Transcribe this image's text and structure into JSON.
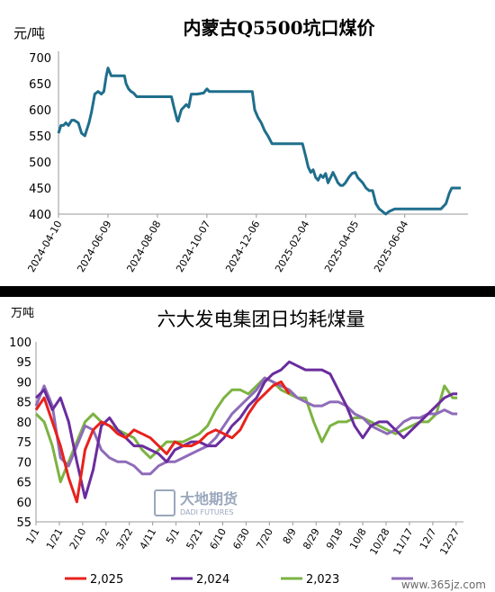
{
  "chart_data": [
    {
      "type": "line",
      "title": "内蒙古Q5500坑口煤价",
      "ylabel": "元/吨",
      "ylim": [
        400,
        700
      ],
      "yticks": [
        "400",
        "450",
        "500",
        "550",
        "600",
        "650",
        "700"
      ],
      "xticks": [
        "2024-04-10",
        "2024-06-09",
        "2024-08-08",
        "2024-10-07",
        "2024-12-06",
        "2025-02-04",
        "2025-04-05",
        "2025-06-04"
      ],
      "grid": false,
      "color": "#1F6E8C",
      "series": [
        {
          "x": [
            "2024-04-10",
            "2024-04-13",
            "2024-04-16",
            "2024-04-19",
            "2024-04-22",
            "2024-04-26",
            "2024-04-29",
            "2024-05-01",
            "2024-05-04",
            "2024-05-08",
            "2024-05-12",
            "2024-05-14",
            "2024-05-17",
            "2024-05-20",
            "2024-05-24",
            "2024-05-28",
            "2024-06-01",
            "2024-06-04",
            "2024-06-07",
            "2024-06-09",
            "2024-06-13",
            "2024-06-17",
            "2024-06-21",
            "2024-06-25",
            "2024-06-29",
            "2024-07-01",
            "2024-07-04",
            "2024-07-07",
            "2024-07-10",
            "2024-07-14",
            "2024-07-20",
            "2024-07-30",
            "2024-08-10",
            "2024-08-20",
            "2024-08-25",
            "2024-08-28",
            "2024-09-01",
            "2024-09-02",
            "2024-09-06",
            "2024-09-12",
            "2024-09-15",
            "2024-09-18",
            "2024-09-25",
            "2024-10-03",
            "2024-10-07",
            "2024-10-10",
            "2024-10-15",
            "2024-10-30",
            "2024-11-20",
            "2024-11-28",
            "2024-12-01",
            "2024-12-04",
            "2024-12-08",
            "2024-12-12",
            "2024-12-16",
            "2024-12-20",
            "2024-12-25",
            "2025-01-05",
            "2025-01-20",
            "2025-01-28",
            "2025-01-31",
            "2025-02-04",
            "2025-02-07",
            "2025-02-10",
            "2025-02-13",
            "2025-02-16",
            "2025-02-19",
            "2025-02-22",
            "2025-02-25",
            "2025-02-28",
            "2025-03-03",
            "2025-03-06",
            "2025-03-09",
            "2025-03-12",
            "2025-03-15",
            "2025-03-18",
            "2025-03-21",
            "2025-03-24",
            "2025-03-28",
            "2025-04-01",
            "2025-04-05",
            "2025-04-08",
            "2025-04-11",
            "2025-04-14",
            "2025-04-18",
            "2025-04-22",
            "2025-04-26",
            "2025-04-30",
            "2025-05-04",
            "2025-05-08",
            "2025-05-12",
            "2025-05-16",
            "2025-05-20",
            "2025-05-23",
            "2025-05-27",
            "2025-05-31",
            "2025-06-05",
            "2025-06-10",
            "2025-06-14",
            "2025-06-20",
            "2025-06-28",
            "2025-07-08",
            "2025-07-18",
            "2025-07-24",
            "2025-07-28",
            "2025-07-31",
            "2025-08-04",
            "2025-08-08",
            "2025-08-11"
          ],
          "y": [
            555,
            570,
            570,
            575,
            570,
            580,
            580,
            578,
            575,
            555,
            550,
            560,
            575,
            595,
            630,
            635,
            630,
            635,
            665,
            680,
            665,
            665,
            665,
            665,
            665,
            650,
            640,
            635,
            632,
            625,
            625,
            625,
            625,
            625,
            625,
            605,
            580,
            578,
            600,
            610,
            605,
            630,
            630,
            632,
            640,
            635,
            635,
            635,
            635,
            635,
            635,
            600,
            585,
            575,
            560,
            550,
            535,
            535,
            535,
            535,
            535,
            510,
            490,
            480,
            485,
            470,
            465,
            475,
            470,
            478,
            460,
            470,
            480,
            470,
            460,
            455,
            455,
            460,
            470,
            478,
            480,
            470,
            465,
            460,
            450,
            445,
            445,
            420,
            410,
            405,
            400,
            405,
            408,
            410,
            410,
            410,
            410,
            410,
            410,
            410,
            410,
            410,
            410,
            420,
            440,
            450,
            450,
            450,
            450
          ]
        }
      ]
    },
    {
      "type": "line",
      "title": "六大发电集团日均耗煤量",
      "ylabel": "万吨",
      "ylim": [
        55,
        100
      ],
      "yticks": [
        "55",
        "60",
        "65",
        "70",
        "75",
        "80",
        "85",
        "90",
        "95",
        "100"
      ],
      "xticks": [
        "1/1",
        "1/21",
        "2/10",
        "3/2",
        "3/22",
        "4/11",
        "5/1",
        "5/21",
        "6/10",
        "6/30",
        "7/20",
        "8/9",
        "8/29",
        "9/18",
        "10/8",
        "10/28",
        "11/17",
        "12/7",
        "12/27"
      ],
      "x_days": [
        1,
        8,
        15,
        22,
        29,
        36,
        43,
        50,
        57,
        64,
        71,
        78,
        85,
        92,
        99,
        106,
        113,
        120,
        127,
        134,
        141,
        148,
        155,
        162,
        169,
        176,
        183,
        190,
        197,
        204,
        211,
        218,
        225,
        232,
        239,
        246,
        253,
        260,
        267,
        274,
        281,
        288,
        295,
        302,
        309,
        316,
        323,
        330,
        337,
        344,
        351,
        358,
        362
      ],
      "grid": false,
      "watermark": "大地期货 DADI FUTURES",
      "source": "www.365jz.com",
      "series": [
        {
          "name": "2,025",
          "color": "#E8211C",
          "values": [
            83,
            86,
            80,
            74,
            66,
            60,
            73,
            78,
            80,
            79,
            77,
            76,
            78,
            77,
            76,
            74,
            72,
            75,
            74,
            74,
            75,
            77,
            78,
            77,
            76,
            78,
            82,
            85,
            87,
            89,
            90,
            87,
            null,
            null,
            null,
            null,
            null,
            null,
            null,
            null,
            null,
            null,
            null,
            null,
            null,
            null,
            null,
            null,
            null,
            null,
            null,
            null,
            null
          ]
        },
        {
          "name": "2,024",
          "color": "#6A2C9E",
          "values": [
            86,
            88,
            83,
            86,
            80,
            70,
            61,
            68,
            79,
            81,
            78,
            76,
            74,
            74,
            73,
            72,
            70,
            73,
            74,
            75,
            75,
            74,
            74,
            76,
            79,
            81,
            84,
            86,
            90,
            92,
            93,
            95,
            94,
            93,
            93,
            93,
            92,
            88,
            84,
            79,
            76,
            79,
            80,
            80,
            78,
            76,
            78,
            80,
            82,
            84,
            86,
            87,
            87
          ]
        },
        {
          "name": "2,023",
          "color": "#7CB342",
          "values": [
            82,
            80,
            74,
            65,
            70,
            75,
            80,
            82,
            80,
            79,
            78,
            77,
            76,
            73,
            71,
            73,
            75,
            75,
            75,
            76,
            77,
            79,
            83,
            86,
            88,
            88,
            87,
            89,
            91,
            90,
            88,
            87,
            86,
            86,
            80,
            75,
            79,
            80,
            80,
            81,
            81,
            80,
            79,
            78,
            77,
            78,
            79,
            80,
            80,
            82,
            89,
            86,
            86
          ]
        },
        {
          "name": "",
          "color": "#8E6CB8",
          "values": [
            84,
            89,
            84,
            71,
            69,
            74,
            79,
            78,
            73,
            71,
            70,
            70,
            69,
            67,
            67,
            69,
            70,
            70,
            71,
            72,
            73,
            74,
            76,
            79,
            82,
            84,
            86,
            88,
            91,
            90,
            89,
            88,
            86,
            85,
            84,
            84,
            85,
            85,
            84,
            82,
            81,
            79,
            78,
            77,
            78,
            80,
            81,
            81,
            82,
            82,
            83,
            82,
            82
          ]
        }
      ]
    }
  ]
}
